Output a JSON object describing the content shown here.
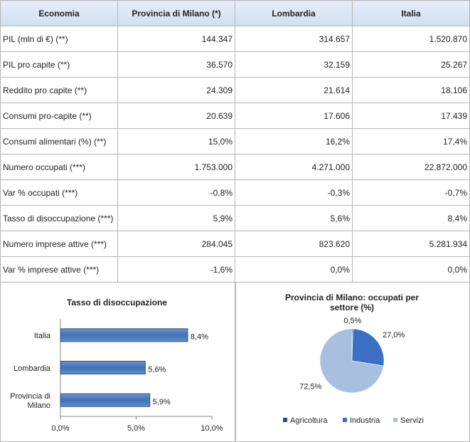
{
  "table": {
    "header": [
      "Economia",
      "Provincia di Milano (*)",
      "Lombardia",
      "Italia"
    ],
    "rows": [
      [
        "PIL (mln di €) (**)",
        "144.347",
        "314.657",
        "1.520.870"
      ],
      [
        "PIL pro capite (**)",
        "36.570",
        "32.159",
        "25.267"
      ],
      [
        "Reddito pro capite (**)",
        "24.309",
        "21.614",
        "18.106"
      ],
      [
        "Consumi pro-capite (**)",
        "20.639",
        "17.606",
        "17.439"
      ],
      [
        "Consumi alimentari (%) (**)",
        "15,0%",
        "16,2%",
        "17,4%"
      ],
      [
        "Numero occupati (***)",
        "1.753.000",
        "4.271.000",
        "22.872.000"
      ],
      [
        "Var % occupati (***)",
        "-0,8%",
        "-0,3%",
        "-0,7%"
      ],
      [
        "Tasso di disoccupazione (***)",
        "5,9%",
        "5,6%",
        "8,4%"
      ],
      [
        "Numero imprese attive (***)",
        "284.045",
        "823.620",
        "5.281.934"
      ],
      [
        "Var % imprese attive (***)",
        "-1,6%",
        "0,0%",
        "0,0%"
      ]
    ]
  },
  "chart_data": [
    {
      "type": "bar",
      "orientation": "horizontal",
      "title": "Tasso di disoccupazione",
      "categories": [
        "Italia",
        "Lombardia",
        "Provincia di Milano"
      ],
      "values": [
        8.4,
        5.6,
        5.9
      ],
      "value_labels": [
        "8,4%",
        "5,6%",
        "5,9%"
      ],
      "color": "#3f72b8",
      "xlim": [
        0,
        10
      ],
      "xticks": [
        {
          "value": 0,
          "label": "0,0%"
        },
        {
          "value": 5,
          "label": "5,0%"
        },
        {
          "value": 10,
          "label": "10,0%"
        }
      ]
    },
    {
      "type": "pie",
      "title": "Provincia di Milano: occupati per settore (%)",
      "categories": [
        "Agricoltura",
        "Industria",
        "Servizi"
      ],
      "values": [
        0.5,
        27.0,
        72.5
      ],
      "value_labels": [
        "0,5%",
        "27,0%",
        "72,5%"
      ],
      "colors": [
        "#1f4e8c",
        "#3a6fc4",
        "#a9bfe0"
      ],
      "legend": "bottom"
    }
  ]
}
